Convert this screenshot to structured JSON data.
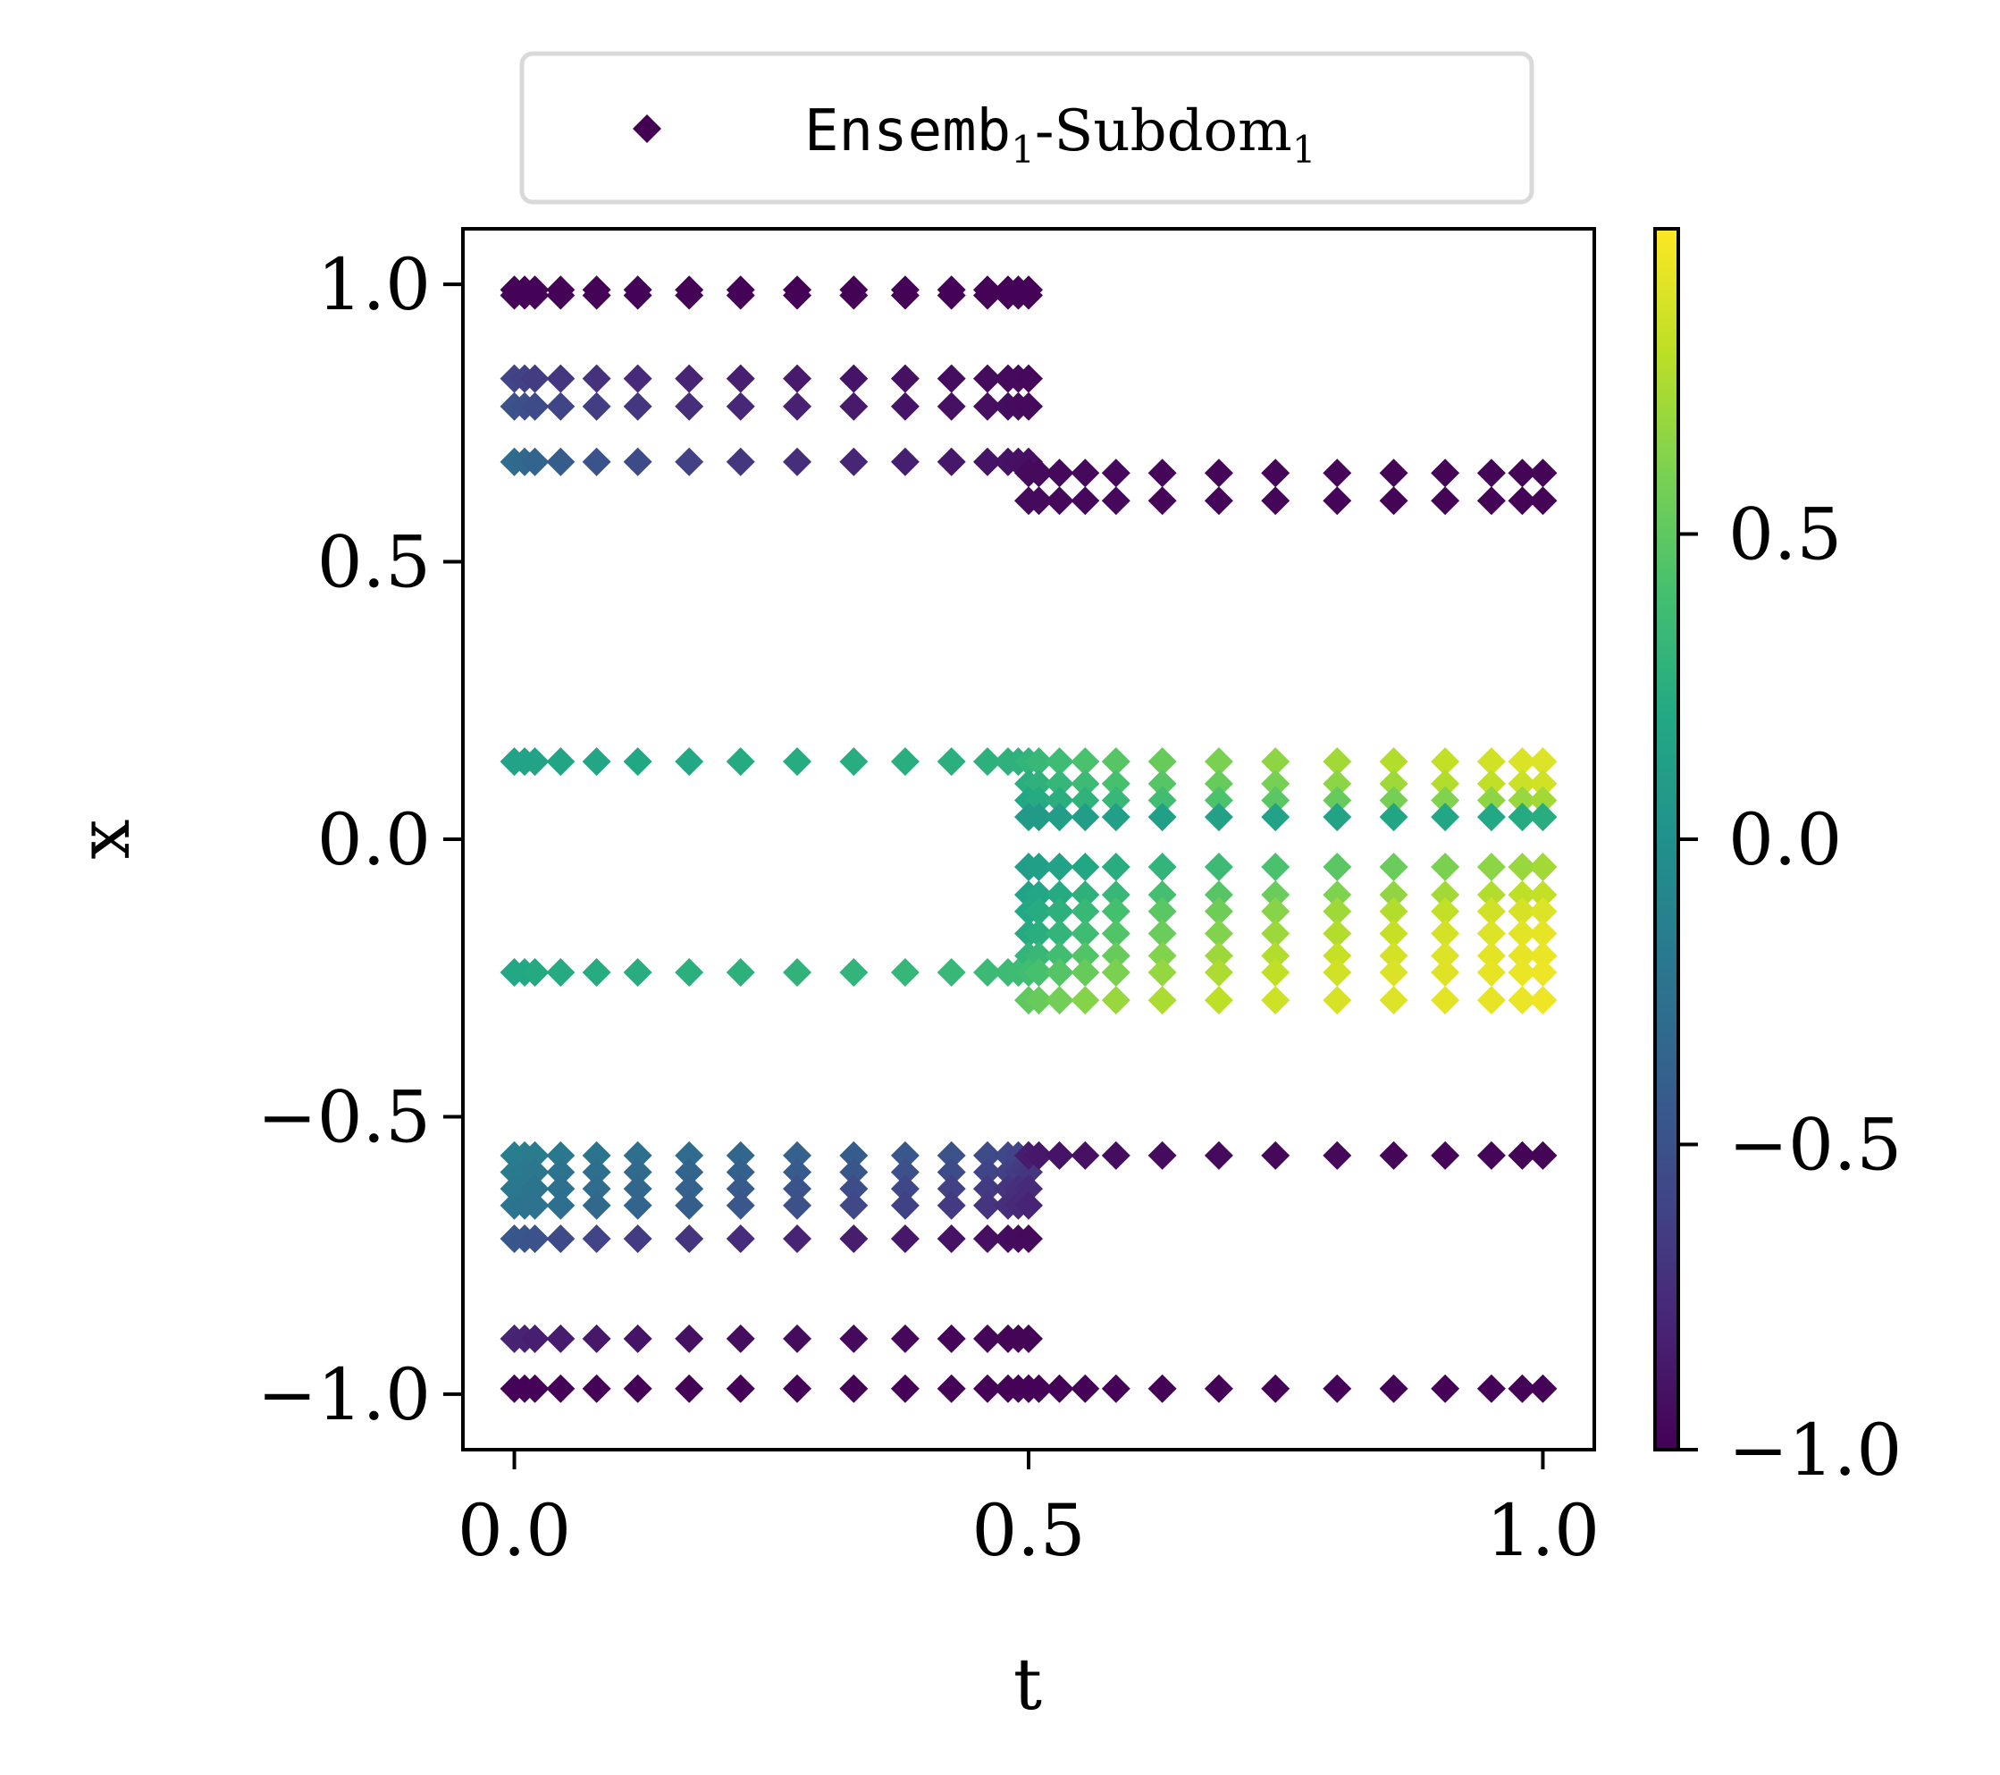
{
  "chart_data": {
    "type": "scatter",
    "title": "",
    "xlabel": "t",
    "ylabel": "x",
    "xlim": [
      -0.05,
      1.05
    ],
    "ylim": [
      -1.1,
      1.1
    ],
    "xticks": [
      "0.0",
      "0.5",
      "1.0"
    ],
    "xtick_values": [
      0.0,
      0.5,
      1.0
    ],
    "yticks": [
      "−1.0",
      "−0.5",
      "0.0",
      "0.5",
      "1.0"
    ],
    "ytick_values": [
      -1.0,
      -0.5,
      0.0,
      0.5,
      1.0
    ],
    "grid": false,
    "marker": "diamond",
    "colormap": "viridis",
    "colorbar": {
      "range": [
        -1.0,
        1.0
      ],
      "ticks": [
        "−1.0",
        "−0.5",
        "0.0",
        "0.5"
      ],
      "tick_values": [
        -1.0,
        -0.5,
        0.0,
        0.5
      ]
    },
    "legend": {
      "placement": "top-center",
      "label_main": "Ensemb",
      "label_sub1": "1",
      "label_mid": "-Subdom",
      "label_sub2": "1",
      "marker_color": "#440154"
    },
    "series": [
      {
        "segment": "early",
        "t": [
          0.0,
          0.01,
          0.02,
          0.045,
          0.08,
          0.12,
          0.17,
          0.22,
          0.275,
          0.33,
          0.38,
          0.425,
          0.46,
          0.48,
          0.49,
          0.5
        ],
        "rows": [
          {
            "x": 0.99,
            "c": [
              -0.99,
              -0.99,
              -0.99,
              -0.99,
              -0.99,
              -0.99,
              -0.99,
              -0.99,
              -0.99,
              -0.99,
              -0.99,
              -0.99,
              -0.99,
              -0.99,
              -0.99,
              -0.99
            ]
          },
          {
            "x": 0.98,
            "c": [
              -0.99,
              -0.99,
              -0.99,
              -0.99,
              -0.99,
              -0.99,
              -0.99,
              -0.99,
              -0.99,
              -0.99,
              -0.99,
              -0.99,
              -0.99,
              -0.99,
              -0.99,
              -0.99
            ]
          },
          {
            "x": 0.83,
            "c": [
              -0.6,
              -0.62,
              -0.65,
              -0.68,
              -0.72,
              -0.76,
              -0.8,
              -0.83,
              -0.86,
              -0.89,
              -0.91,
              -0.93,
              -0.94,
              -0.95,
              -0.95,
              -0.96
            ]
          },
          {
            "x": 0.78,
            "c": [
              -0.5,
              -0.52,
              -0.55,
              -0.59,
              -0.64,
              -0.69,
              -0.74,
              -0.78,
              -0.82,
              -0.86,
              -0.89,
              -0.91,
              -0.92,
              -0.93,
              -0.94,
              -0.95
            ]
          },
          {
            "x": 0.68,
            "c": [
              -0.3,
              -0.32,
              -0.36,
              -0.42,
              -0.48,
              -0.55,
              -0.62,
              -0.68,
              -0.74,
              -0.79,
              -0.83,
              -0.87,
              -0.89,
              -0.9,
              -0.91,
              -0.92
            ]
          },
          {
            "x": 0.14,
            "c": [
              0.15,
              0.15,
              0.16,
              0.17,
              0.18,
              0.19,
              0.2,
              0.22,
              0.23,
              0.24,
              0.25,
              0.26,
              0.27,
              0.28,
              0.28,
              0.3
            ]
          },
          {
            "x": -0.24,
            "c": [
              0.2,
              0.2,
              0.21,
              0.22,
              0.23,
              0.24,
              0.26,
              0.27,
              0.29,
              0.3,
              0.32,
              0.33,
              0.35,
              0.36,
              0.37,
              0.38
            ]
          },
          {
            "x": -0.57,
            "c": [
              -0.15,
              -0.16,
              -0.18,
              -0.2,
              -0.23,
              -0.27,
              -0.3,
              -0.34,
              -0.38,
              -0.42,
              -0.46,
              -0.5,
              -0.54,
              -0.57,
              -0.6,
              -0.63
            ]
          },
          {
            "x": -0.6,
            "c": [
              -0.18,
              -0.19,
              -0.21,
              -0.24,
              -0.27,
              -0.31,
              -0.35,
              -0.39,
              -0.43,
              -0.47,
              -0.51,
              -0.55,
              -0.59,
              -0.62,
              -0.65,
              -0.68
            ]
          },
          {
            "x": -0.63,
            "c": [
              -0.2,
              -0.21,
              -0.23,
              -0.26,
              -0.3,
              -0.34,
              -0.38,
              -0.43,
              -0.48,
              -0.53,
              -0.58,
              -0.62,
              -0.66,
              -0.7,
              -0.73,
              -0.76
            ]
          },
          {
            "x": -0.66,
            "c": [
              -0.22,
              -0.23,
              -0.25,
              -0.28,
              -0.32,
              -0.36,
              -0.41,
              -0.46,
              -0.51,
              -0.56,
              -0.61,
              -0.66,
              -0.7,
              -0.74,
              -0.77,
              -0.8
            ]
          },
          {
            "x": -0.72,
            "c": [
              -0.45,
              -0.47,
              -0.5,
              -0.55,
              -0.6,
              -0.65,
              -0.7,
              -0.75,
              -0.8,
              -0.84,
              -0.87,
              -0.9,
              -0.92,
              -0.93,
              -0.94,
              -0.95
            ]
          },
          {
            "x": -0.9,
            "c": [
              -0.8,
              -0.81,
              -0.83,
              -0.85,
              -0.87,
              -0.89,
              -0.91,
              -0.93,
              -0.94,
              -0.95,
              -0.96,
              -0.97,
              -0.97,
              -0.98,
              -0.98,
              -0.98
            ]
          },
          {
            "x": -0.99,
            "c": [
              -0.99,
              -0.99,
              -0.99,
              -0.99,
              -0.99,
              -0.99,
              -0.99,
              -0.99,
              -0.99,
              -0.99,
              -0.99,
              -0.99,
              -0.99,
              -0.99,
              -0.99,
              -0.99
            ]
          }
        ]
      },
      {
        "segment": "late",
        "t": [
          0.5,
          0.51,
          0.53,
          0.555,
          0.585,
          0.63,
          0.685,
          0.74,
          0.8,
          0.855,
          0.905,
          0.95,
          0.98,
          1.0
        ],
        "rows": [
          {
            "x": 0.66,
            "c": [
              -0.95,
              -0.95,
              -0.96,
              -0.96,
              -0.96,
              -0.97,
              -0.97,
              -0.97,
              -0.97,
              -0.98,
              -0.98,
              -0.98,
              -0.98,
              -0.98
            ]
          },
          {
            "x": 0.61,
            "c": [
              -0.95,
              -0.95,
              -0.96,
              -0.96,
              -0.96,
              -0.97,
              -0.97,
              -0.97,
              -0.97,
              -0.98,
              -0.98,
              -0.98,
              -0.98,
              -0.98
            ]
          },
          {
            "x": 0.14,
            "c": [
              0.3,
              0.33,
              0.37,
              0.42,
              0.47,
              0.53,
              0.6,
              0.66,
              0.72,
              0.77,
              0.82,
              0.86,
              0.89,
              0.9
            ]
          },
          {
            "x": 0.1,
            "c": [
              0.25,
              0.28,
              0.32,
              0.36,
              0.41,
              0.47,
              0.53,
              0.59,
              0.65,
              0.71,
              0.77,
              0.81,
              0.84,
              0.86
            ]
          },
          {
            "x": 0.07,
            "c": [
              0.2,
              0.22,
              0.25,
              0.29,
              0.33,
              0.38,
              0.43,
              0.48,
              0.53,
              0.58,
              0.62,
              0.66,
              0.69,
              0.72
            ]
          },
          {
            "x": 0.04,
            "c": [
              0.08,
              0.09,
              0.1,
              0.11,
              0.12,
              0.13,
              0.14,
              0.15,
              0.16,
              0.17,
              0.18,
              0.2,
              0.22,
              0.24
            ]
          },
          {
            "x": -0.05,
            "c": [
              0.1,
              0.12,
              0.15,
              0.19,
              0.24,
              0.3,
              0.36,
              0.42,
              0.48,
              0.54,
              0.6,
              0.65,
              0.69,
              0.72
            ]
          },
          {
            "x": -0.1,
            "c": [
              0.15,
              0.18,
              0.22,
              0.27,
              0.33,
              0.4,
              0.47,
              0.54,
              0.61,
              0.67,
              0.72,
              0.77,
              0.8,
              0.82
            ]
          },
          {
            "x": -0.13,
            "c": [
              0.2,
              0.23,
              0.27,
              0.33,
              0.4,
              0.48,
              0.56,
              0.64,
              0.71,
              0.77,
              0.82,
              0.86,
              0.88,
              0.9
            ]
          },
          {
            "x": -0.17,
            "c": [
              0.22,
              0.25,
              0.3,
              0.37,
              0.45,
              0.54,
              0.62,
              0.7,
              0.77,
              0.83,
              0.87,
              0.9,
              0.92,
              0.93
            ]
          },
          {
            "x": -0.21,
            "c": [
              0.3,
              0.33,
              0.38,
              0.45,
              0.53,
              0.62,
              0.7,
              0.77,
              0.83,
              0.87,
              0.9,
              0.92,
              0.93,
              0.94
            ]
          },
          {
            "x": -0.24,
            "c": [
              0.38,
              0.41,
              0.46,
              0.53,
              0.6,
              0.68,
              0.75,
              0.81,
              0.86,
              0.89,
              0.91,
              0.93,
              0.94,
              0.95
            ]
          },
          {
            "x": -0.29,
            "c": [
              0.5,
              0.53,
              0.57,
              0.63,
              0.69,
              0.75,
              0.8,
              0.85,
              0.88,
              0.9,
              0.92,
              0.93,
              0.94,
              0.95
            ]
          },
          {
            "x": -0.57,
            "c": [
              -0.85,
              -0.87,
              -0.89,
              -0.91,
              -0.93,
              -0.94,
              -0.95,
              -0.96,
              -0.96,
              -0.97,
              -0.97,
              -0.97,
              -0.98,
              -0.98
            ]
          },
          {
            "x": -0.99,
            "c": [
              -0.99,
              -0.99,
              -0.99,
              -0.99,
              -0.99,
              -0.99,
              -0.99,
              -0.99,
              -0.99,
              -0.99,
              -0.99,
              -0.99,
              -0.99,
              -0.99
            ]
          }
        ]
      }
    ]
  }
}
